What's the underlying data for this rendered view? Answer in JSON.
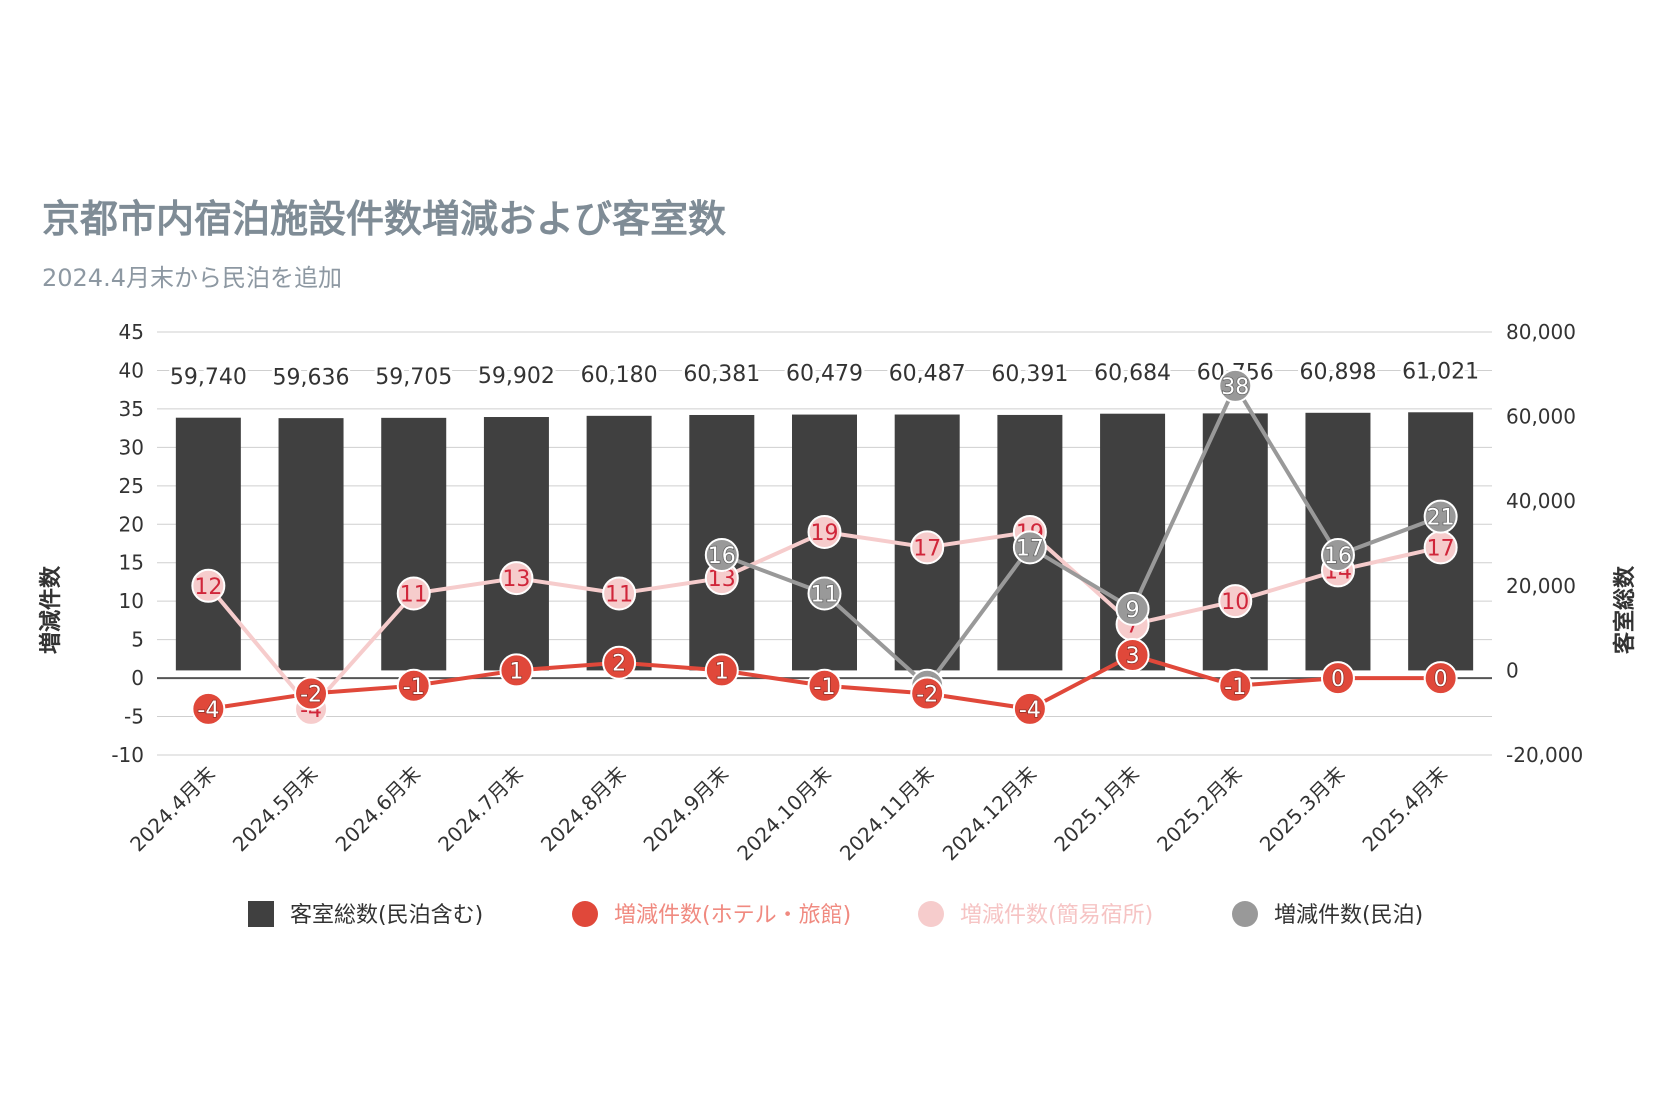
{
  "chart_data": {
    "type": "bar",
    "title": "京都市内宿泊施設件数増減および客室数",
    "subtitle": "2024.4月末から民泊を追加",
    "categories": [
      "2024.4月末",
      "2024.5月末",
      "2024.6月末",
      "2024.7月末",
      "2024.8月末",
      "2024.9月末",
      "2024.10月末",
      "2024.11月末",
      "2024.12月末",
      "2025.1月末",
      "2025.2月末",
      "2025.3月末",
      "2025.4月末"
    ],
    "y_left": {
      "label": "増減件数",
      "min": -10,
      "max": 45,
      "ticks": [
        -10,
        -5,
        0,
        5,
        10,
        15,
        20,
        25,
        30,
        35,
        40,
        45
      ]
    },
    "y_right": {
      "label": "客室総数",
      "min": -20000,
      "max": 80000,
      "ticks": [
        -20000,
        0,
        20000,
        40000,
        60000,
        80000
      ],
      "tick_labels": [
        "-20,000",
        "0",
        "20,000",
        "40,000",
        "60,000",
        "80,000"
      ]
    },
    "grid": true,
    "legend_position": "bottom",
    "series": [
      {
        "name": "客室総数(民泊含む)",
        "type": "bar",
        "axis": "right",
        "color": "#404040",
        "values": [
          59740,
          59636,
          59705,
          59902,
          60180,
          60381,
          60479,
          60487,
          60391,
          60684,
          60756,
          60898,
          61021
        ],
        "labels": [
          "59,740",
          "59,636",
          "59,705",
          "59,902",
          "60,180",
          "60,381",
          "60,479",
          "60,487",
          "60,391",
          "60,684",
          "60,756",
          "60,898",
          "61,021"
        ]
      },
      {
        "name": "増減件数(ホテル・旅館)",
        "type": "line",
        "axis": "left",
        "color": "#e0483a",
        "text_color": "#ffffff",
        "legend_text_color": "#f08a80",
        "values": [
          -4,
          -2,
          -1,
          1,
          2,
          1,
          -1,
          -2,
          -4,
          3,
          -1,
          0,
          0
        ]
      },
      {
        "name": "増減件数(簡易宿所)",
        "type": "line",
        "axis": "left",
        "color": "#f6cccc",
        "text_color": "#d0263a",
        "legend_text_color": "#f6c4c4",
        "values": [
          12,
          -4,
          11,
          13,
          11,
          13,
          19,
          17,
          19,
          7,
          10,
          14,
          17
        ]
      },
      {
        "name": "増減件数(民泊)",
        "type": "line",
        "axis": "left",
        "color": "#999999",
        "text_color": "#ffffff",
        "legend_text_color": "#333333",
        "values": [
          null,
          null,
          null,
          null,
          null,
          16,
          11,
          -1,
          17,
          9,
          38,
          16,
          21
        ]
      }
    ]
  }
}
